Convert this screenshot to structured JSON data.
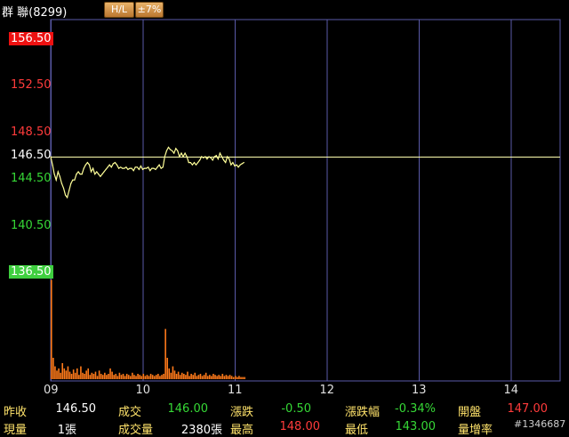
{
  "header": {
    "stock_name": "群 聯(8299)",
    "hl_button": "H/L",
    "pct_button": "±7%"
  },
  "chart_data": {
    "type": "line",
    "title": "",
    "reference_price": 146.5,
    "y_ticks": [
      "156.50",
      "152.50",
      "148.50",
      "146.50",
      "144.50",
      "140.50",
      "136.50"
    ],
    "y_tick_values": [
      156.5,
      152.5,
      148.5,
      146.5,
      144.5,
      140.5,
      136.5
    ],
    "ylim": [
      136.5,
      156.5
    ],
    "x_ticks": [
      "09",
      "10",
      "11",
      "12",
      "13",
      "14"
    ],
    "x_tick_hours": [
      9,
      10,
      11,
      12,
      13,
      14
    ],
    "xlim_hours": [
      9,
      14.5
    ],
    "series": [
      {
        "values_time_hours": [
          9.0,
          9.02,
          9.04,
          9.06,
          9.08,
          9.1,
          9.12,
          9.14,
          9.16,
          9.18,
          9.2,
          9.22,
          9.24,
          9.26,
          9.28,
          9.3,
          9.32,
          9.34,
          9.36,
          9.38,
          9.4,
          9.42,
          9.44,
          9.46,
          9.48,
          9.5,
          9.52,
          9.54,
          9.56,
          9.58,
          9.6,
          9.62,
          9.64,
          9.66,
          9.68,
          9.7,
          9.72,
          9.74,
          9.76,
          9.78,
          9.8,
          9.82,
          9.84,
          9.86,
          9.88,
          9.9,
          9.92,
          9.94,
          9.96,
          9.98,
          10.0,
          10.02,
          10.04,
          10.06,
          10.08,
          10.1,
          10.12,
          10.14,
          10.16,
          10.18,
          10.2,
          10.22,
          10.24,
          10.26,
          10.28,
          10.3,
          10.32,
          10.34,
          10.36,
          10.38,
          10.4,
          10.42,
          10.44,
          10.46,
          10.48,
          10.5,
          10.52,
          10.54,
          10.56,
          10.58,
          10.6,
          10.62,
          10.64,
          10.66,
          10.68,
          10.7,
          10.72,
          10.74,
          10.76,
          10.78,
          10.8,
          10.82,
          10.84,
          10.86,
          10.88,
          10.9,
          10.92,
          10.94,
          10.96,
          10.98,
          11.0,
          11.02,
          11.04,
          11.06,
          11.08,
          11.1
        ],
        "values_price": [
          146.5,
          145.8,
          145.0,
          144.5,
          145.2,
          144.8,
          144.2,
          143.8,
          143.2,
          143.0,
          143.6,
          144.2,
          144.5,
          144.5,
          145.0,
          145.2,
          145.0,
          145.0,
          145.5,
          145.8,
          146.0,
          145.8,
          145.2,
          145.5,
          145.0,
          145.2,
          145.0,
          144.8,
          145.0,
          145.2,
          145.4,
          145.6,
          145.8,
          145.6,
          145.9,
          146.0,
          145.8,
          145.5,
          145.6,
          145.5,
          145.5,
          145.6,
          145.4,
          145.5,
          145.5,
          145.3,
          145.6,
          145.6,
          145.4,
          145.7,
          145.4,
          145.5,
          145.5,
          145.6,
          145.3,
          145.5,
          145.5,
          145.4,
          145.6,
          145.8,
          145.5,
          145.6,
          146.5,
          147.0,
          147.3,
          147.1,
          147.0,
          146.8,
          147.2,
          147.0,
          146.5,
          146.8,
          146.5,
          146.8,
          146.5,
          146.0,
          146.0,
          145.8,
          146.0,
          145.8,
          146.0,
          146.2,
          146.5,
          146.4,
          146.5,
          146.3,
          146.5,
          146.4,
          146.2,
          146.5,
          146.6,
          146.3,
          146.8,
          146.5,
          146.2,
          146.0,
          146.5,
          146.3,
          145.8,
          146.0,
          145.7,
          145.8,
          145.6,
          145.8,
          145.9,
          146.0
        ]
      }
    ],
    "volume": {
      "values_time_hours": [
        9.0,
        9.02,
        9.04,
        9.06,
        9.08,
        9.1,
        9.12,
        9.14,
        9.16,
        9.18,
        9.2,
        9.22,
        9.24,
        9.26,
        9.28,
        9.3,
        9.32,
        9.34,
        9.36,
        9.38,
        9.4,
        9.42,
        9.44,
        9.46,
        9.48,
        9.5,
        9.52,
        9.54,
        9.56,
        9.58,
        9.6,
        9.62,
        9.64,
        9.66,
        9.68,
        9.7,
        9.72,
        9.74,
        9.76,
        9.78,
        9.8,
        9.82,
        9.84,
        9.86,
        9.88,
        9.9,
        9.92,
        9.94,
        9.96,
        9.98,
        10.0,
        10.02,
        10.04,
        10.06,
        10.08,
        10.1,
        10.12,
        10.14,
        10.16,
        10.18,
        10.2,
        10.22,
        10.24,
        10.26,
        10.28,
        10.3,
        10.32,
        10.34,
        10.36,
        10.38,
        10.4,
        10.42,
        10.44,
        10.46,
        10.48,
        10.5,
        10.52,
        10.54,
        10.56,
        10.58,
        10.6,
        10.62,
        10.64,
        10.66,
        10.68,
        10.7,
        10.72,
        10.74,
        10.76,
        10.78,
        10.8,
        10.82,
        10.84,
        10.86,
        10.88,
        10.9,
        10.92,
        10.94,
        10.96,
        10.98,
        11.0,
        11.02,
        11.04,
        11.06,
        11.08,
        11.1
      ],
      "values": [
        0.93,
        0.2,
        0.12,
        0.08,
        0.1,
        0.06,
        0.15,
        0.1,
        0.08,
        0.12,
        0.07,
        0.05,
        0.09,
        0.06,
        0.1,
        0.04,
        0.12,
        0.06,
        0.05,
        0.08,
        0.1,
        0.04,
        0.06,
        0.05,
        0.07,
        0.03,
        0.08,
        0.05,
        0.04,
        0.06,
        0.04,
        0.05,
        0.1,
        0.07,
        0.04,
        0.05,
        0.03,
        0.06,
        0.04,
        0.05,
        0.03,
        0.05,
        0.04,
        0.03,
        0.06,
        0.04,
        0.03,
        0.05,
        0.04,
        0.03,
        0.05,
        0.03,
        0.04,
        0.03,
        0.05,
        0.04,
        0.03,
        0.04,
        0.05,
        0.03,
        0.04,
        0.05,
        0.47,
        0.2,
        0.1,
        0.06,
        0.12,
        0.08,
        0.05,
        0.07,
        0.04,
        0.06,
        0.05,
        0.04,
        0.07,
        0.03,
        0.05,
        0.04,
        0.06,
        0.03,
        0.04,
        0.05,
        0.03,
        0.04,
        0.06,
        0.03,
        0.04,
        0.03,
        0.05,
        0.04,
        0.03,
        0.04,
        0.03,
        0.05,
        0.03,
        0.04,
        0.03,
        0.04,
        0.03,
        0.02,
        0.03,
        0.02,
        0.03,
        0.02,
        0.02,
        0.02
      ]
    },
    "grid": true
  },
  "footer": {
    "row1": [
      {
        "label": "昨收",
        "value": "146.50",
        "color": "#ffffff"
      },
      {
        "label": "成交",
        "value": "146.00",
        "color": "#36d836"
      },
      {
        "label": "漲跌",
        "value": "-0.50",
        "color": "#36d836"
      },
      {
        "label": "漲跌幅",
        "value": "-0.34%",
        "color": "#36d836"
      },
      {
        "label": "開盤",
        "value": "147.00",
        "color": "#ff3b3b"
      }
    ],
    "row2": [
      {
        "label": "現量",
        "value": "1張",
        "color": "#ffffff"
      },
      {
        "label": "成交量",
        "value": "2380張",
        "color": "#ffffff"
      },
      {
        "label": "最高",
        "value": "148.00",
        "color": "#ff3b3b"
      },
      {
        "label": "最低",
        "value": "143.00",
        "color": "#36d836"
      },
      {
        "label": "量增率",
        "value": "",
        "color": "#ffffff"
      }
    ],
    "watermark": "#1346687"
  },
  "colors": {
    "price_line": "#ffff99",
    "reference_line": "#ffffb0",
    "volume_bar": "#ff7a1a",
    "grid": "#5a5aa8",
    "up": "#ff3b3b",
    "down": "#36d836",
    "label": "#ffe36b"
  }
}
